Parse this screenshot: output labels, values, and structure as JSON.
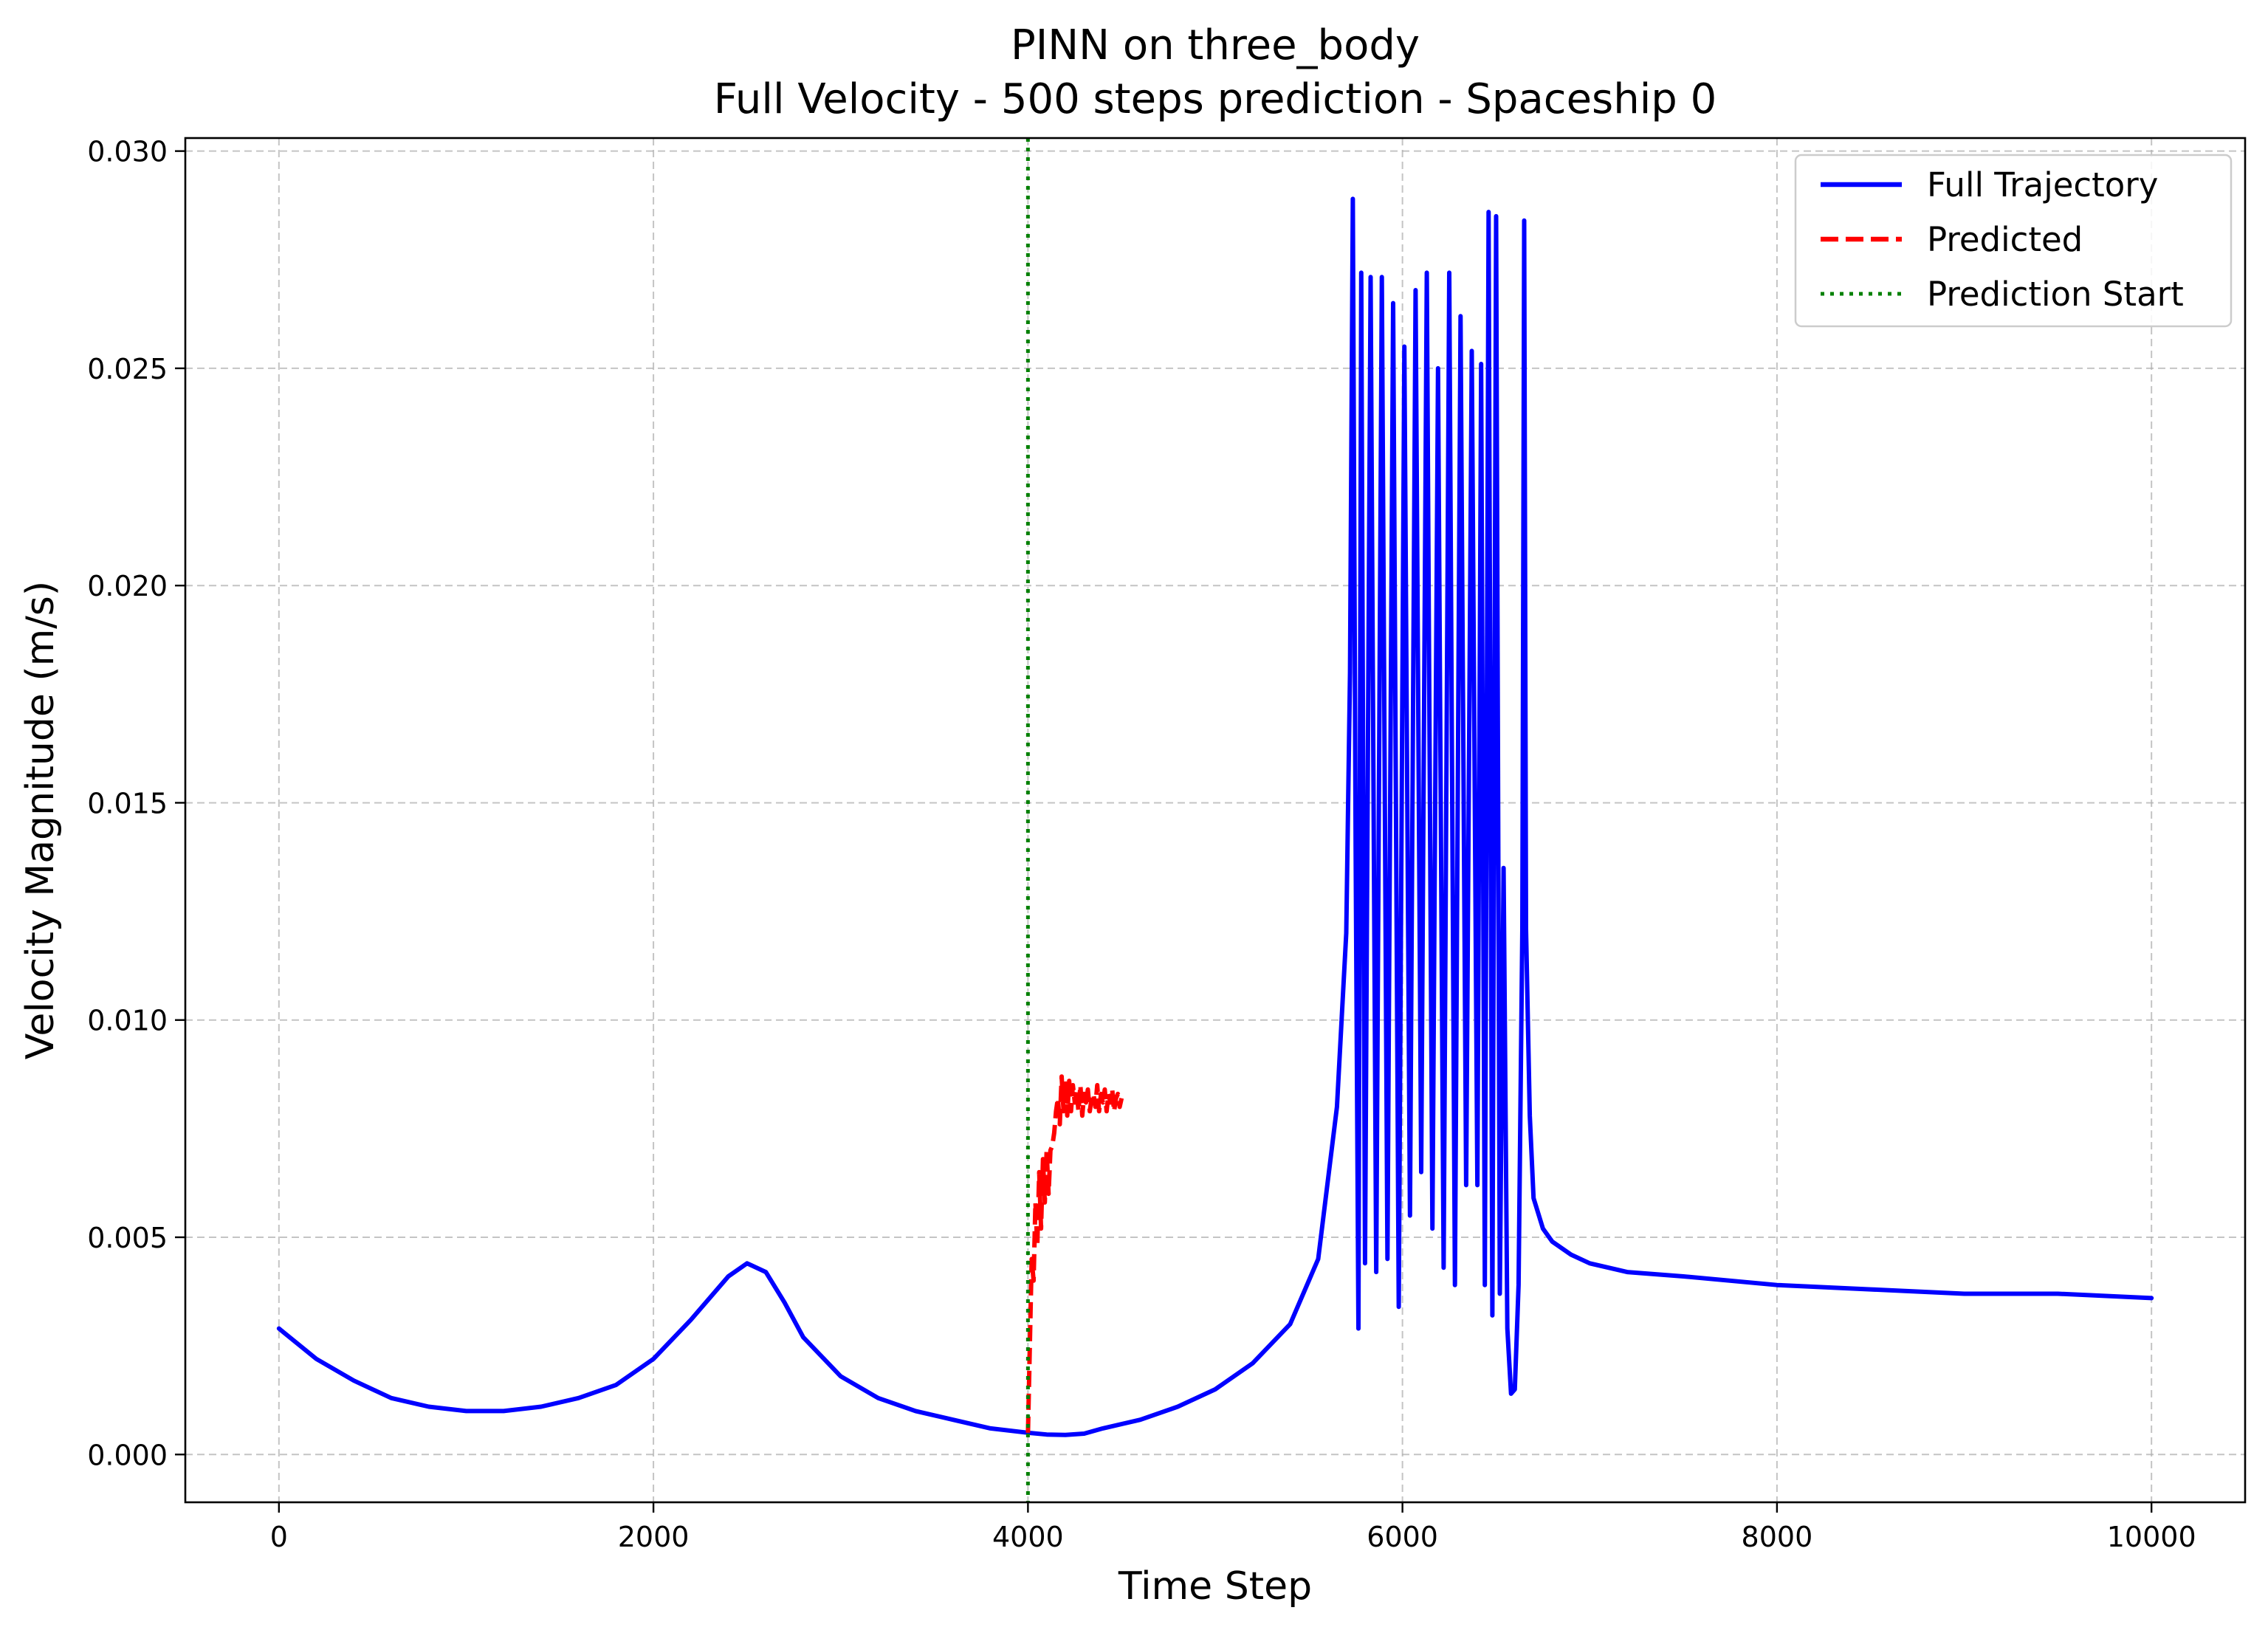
{
  "chart_data": {
    "type": "line",
    "title": "PINN on three_body",
    "subtitle": "Full Velocity - 500 steps prediction - Spaceship 0",
    "xlabel": "Time Step",
    "ylabel": "Velocity Magnitude (m/s)",
    "xlim": [
      -500,
      10500
    ],
    "ylim": [
      -0.0011,
      0.0303
    ],
    "xticks": [
      0,
      2000,
      4000,
      6000,
      8000,
      10000
    ],
    "xtick_labels": [
      "0",
      "2000",
      "4000",
      "6000",
      "8000",
      "10000"
    ],
    "yticks": [
      0.0,
      0.005,
      0.01,
      0.015,
      0.02,
      0.025,
      0.03
    ],
    "ytick_labels": [
      "0.000",
      "0.005",
      "0.010",
      "0.015",
      "0.020",
      "0.025",
      "0.030"
    ],
    "grid": true,
    "legend_position": "top-right",
    "series": [
      {
        "name": "Full Trajectory",
        "color": "#0000ff",
        "style": "solid",
        "x": [
          0,
          200,
          400,
          600,
          800,
          1000,
          1200,
          1400,
          1600,
          1800,
          2000,
          2200,
          2400,
          2500,
          2600,
          2700,
          2800,
          3000,
          3200,
          3400,
          3600,
          3800,
          4000,
          4100,
          4200,
          4300,
          4400,
          4600,
          4800,
          5000,
          5200,
          5400,
          5550,
          5650,
          5700,
          5720,
          5735,
          5750,
          5765,
          5780,
          5800,
          5830,
          5860,
          5890,
          5920,
          5950,
          5980,
          6010,
          6040,
          6070,
          6100,
          6130,
          6160,
          6190,
          6220,
          6250,
          6280,
          6310,
          6340,
          6370,
          6400,
          6420,
          6440,
          6460,
          6480,
          6500,
          6520,
          6540,
          6560,
          6580,
          6600,
          6620,
          6640,
          6650,
          6660,
          6680,
          6700,
          6750,
          6800,
          6900,
          7000,
          7200,
          7500,
          8000,
          8500,
          9000,
          9500,
          10000
        ],
        "y": [
          0.0029,
          0.0022,
          0.0017,
          0.0013,
          0.0011,
          0.001,
          0.001,
          0.0011,
          0.0013,
          0.0016,
          0.0022,
          0.0031,
          0.0041,
          0.0044,
          0.0042,
          0.0035,
          0.0027,
          0.0018,
          0.0013,
          0.001,
          0.0008,
          0.0006,
          0.0005,
          0.00046,
          0.00045,
          0.00048,
          0.0006,
          0.0008,
          0.0011,
          0.0015,
          0.0021,
          0.003,
          0.0045,
          0.008,
          0.012,
          0.018,
          0.0289,
          0.014,
          0.0029,
          0.0272,
          0.0044,
          0.0271,
          0.0042,
          0.0271,
          0.0045,
          0.0265,
          0.0034,
          0.0255,
          0.0055,
          0.0268,
          0.0065,
          0.0272,
          0.0052,
          0.025,
          0.0043,
          0.0272,
          0.0039,
          0.0262,
          0.0062,
          0.0254,
          0.0062,
          0.0251,
          0.0039,
          0.0286,
          0.0032,
          0.0285,
          0.0037,
          0.0135,
          0.0029,
          0.0014,
          0.0015,
          0.0039,
          0.0121,
          0.0284,
          0.0121,
          0.0078,
          0.0059,
          0.0052,
          0.0049,
          0.0046,
          0.0044,
          0.0042,
          0.0041,
          0.0039,
          0.0038,
          0.0037,
          0.0037,
          0.0036
        ]
      },
      {
        "name": "Predicted",
        "color": "#ff0000",
        "style": "dashed",
        "x": [
          4000,
          4010,
          4020,
          4030,
          4040,
          4050,
          4060,
          4070,
          4080,
          4090,
          4100,
          4110,
          4120,
          4130,
          4140,
          4150,
          4160,
          4170,
          4180,
          4190,
          4200,
          4210,
          4220,
          4230,
          4240,
          4250,
          4260,
          4270,
          4280,
          4290,
          4300,
          4310,
          4320,
          4330,
          4340,
          4350,
          4360,
          4370,
          4380,
          4390,
          4400,
          4410,
          4420,
          4430,
          4440,
          4450,
          4460,
          4470,
          4480,
          4490,
          4500
        ],
        "y": [
          0.0005,
          0.0025,
          0.0045,
          0.004,
          0.0058,
          0.0048,
          0.0065,
          0.0052,
          0.0068,
          0.0058,
          0.007,
          0.006,
          0.007,
          0.0071,
          0.0074,
          0.0079,
          0.0082,
          0.0076,
          0.0087,
          0.0079,
          0.0086,
          0.0078,
          0.0086,
          0.0079,
          0.0085,
          0.0081,
          0.0084,
          0.0079,
          0.0085,
          0.0078,
          0.0083,
          0.0081,
          0.0084,
          0.0079,
          0.0082,
          0.0083,
          0.008,
          0.0085,
          0.0079,
          0.0083,
          0.0081,
          0.0084,
          0.0079,
          0.0083,
          0.0081,
          0.0084,
          0.0079,
          0.0082,
          0.0083,
          0.008,
          0.0082
        ]
      },
      {
        "name": "Prediction Start",
        "color": "#008000",
        "style": "dotted",
        "x_value": 4000
      }
    ]
  }
}
